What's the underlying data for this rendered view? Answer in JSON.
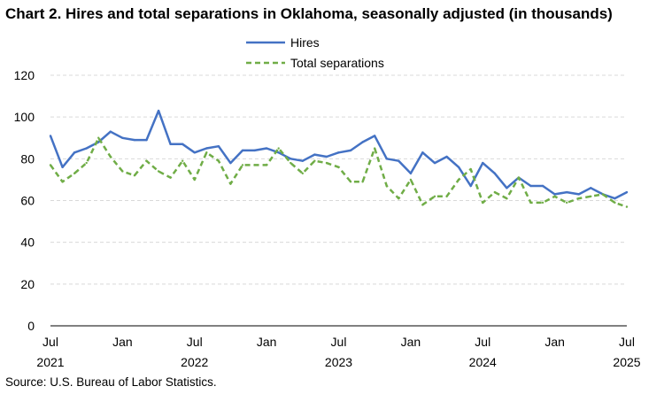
{
  "chart_data": {
    "type": "line",
    "title": "Chart 2. Hires and total separations in Oklahoma, seasonally adjusted (in thousands)",
    "source": "Source: U.S. Bureau of Labor Statistics.",
    "ylim": [
      0,
      120
    ],
    "yticks": [
      "0",
      "20",
      "40",
      "60",
      "80",
      "100",
      "120"
    ],
    "grid": true,
    "legend_position": "top-center",
    "x_tick_labels": [
      {
        "month": "Jul",
        "year": "2021"
      },
      {
        "month": "Jan",
        "year": ""
      },
      {
        "month": "Jul",
        "year": "2022"
      },
      {
        "month": "Jan",
        "year": ""
      },
      {
        "month": "Jul",
        "year": "2023"
      },
      {
        "month": "Jan",
        "year": ""
      },
      {
        "month": "Jul",
        "year": "2024"
      },
      {
        "month": "Jan",
        "year": ""
      },
      {
        "month": "Jul",
        "year": "2025"
      }
    ],
    "x": [
      "2021-07",
      "2021-08",
      "2021-09",
      "2021-10",
      "2021-11",
      "2021-12",
      "2022-01",
      "2022-02",
      "2022-03",
      "2022-04",
      "2022-05",
      "2022-06",
      "2022-07",
      "2022-08",
      "2022-09",
      "2022-10",
      "2022-11",
      "2022-12",
      "2023-01",
      "2023-02",
      "2023-03",
      "2023-04",
      "2023-05",
      "2023-06",
      "2023-07",
      "2023-08",
      "2023-09",
      "2023-10",
      "2023-11",
      "2023-12",
      "2024-01",
      "2024-02",
      "2024-03",
      "2024-04",
      "2024-05",
      "2024-06",
      "2024-07",
      "2024-08",
      "2024-09",
      "2024-10",
      "2024-11",
      "2024-12",
      "2025-01",
      "2025-02",
      "2025-03",
      "2025-04",
      "2025-05",
      "2025-06",
      "2025-07"
    ],
    "series": [
      {
        "name": "Hires",
        "color": "#4472C4",
        "style": "solid",
        "values": [
          91,
          76,
          83,
          85,
          88,
          93,
          90,
          89,
          89,
          103,
          87,
          87,
          83,
          85,
          86,
          78,
          84,
          84,
          85,
          83,
          80,
          79,
          82,
          81,
          83,
          84,
          88,
          91,
          80,
          79,
          73,
          83,
          78,
          81,
          76,
          67,
          78,
          73,
          66,
          71,
          67,
          67,
          63,
          64,
          63,
          66,
          63,
          61,
          64
        ]
      },
      {
        "name": "Total separations",
        "color": "#70AD47",
        "style": "dashed",
        "values": [
          77,
          69,
          73,
          78,
          90,
          81,
          74,
          72,
          79,
          74,
          71,
          79,
          70,
          83,
          79,
          68,
          77,
          77,
          77,
          85,
          78,
          73,
          79,
          78,
          76,
          69,
          69,
          85,
          67,
          61,
          70,
          58,
          62,
          62,
          70,
          75,
          59,
          64,
          61,
          71,
          59,
          59,
          62,
          59,
          61,
          62,
          63,
          59,
          57
        ]
      }
    ]
  }
}
